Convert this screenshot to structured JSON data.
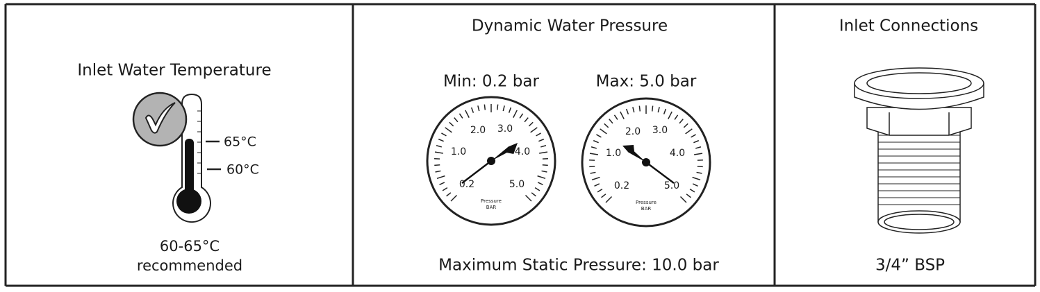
{
  "panels": [
    {
      "title": "Inlet Water Temperature",
      "markers": [
        "65°C",
        "60°C"
      ],
      "caption": [
        "60-65°C",
        "recommended"
      ]
    },
    {
      "title": "Dynamic Water Pressure",
      "gauges": [
        {
          "label": "Min: 0.2 bar",
          "scale": [
            "0.2",
            "1.0",
            "2.0",
            "3.0",
            "4.0",
            "5.0"
          ],
          "unit": [
            "Pressure",
            "BAR"
          ]
        },
        {
          "label": "Max: 5.0 bar",
          "scale": [
            "0.2",
            "1.0",
            "2.0",
            "3.0",
            "4.0",
            "5.0"
          ],
          "unit": [
            "Pressure",
            "BAR"
          ]
        }
      ],
      "caption": "Maximum Static Pressure: 10.0 bar"
    },
    {
      "title": "Inlet Connections",
      "caption": "3/4” BSP"
    }
  ]
}
